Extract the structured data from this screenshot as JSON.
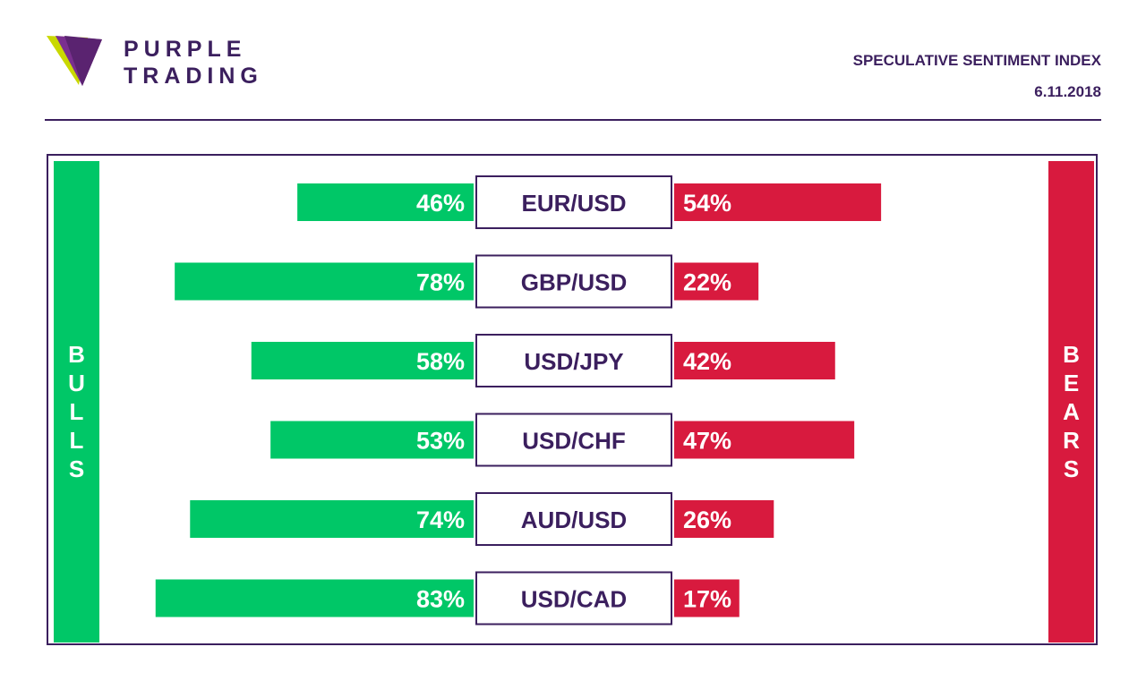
{
  "brand": {
    "line1": "PURPLE",
    "line2": "TRADING",
    "colors": {
      "purple": "#3b1f5e",
      "violet": "#7a2f8f",
      "lime": "#c9d800"
    }
  },
  "header": {
    "title": "SPECULATIVE SENTIMENT INDEX",
    "date": "6.11.2018"
  },
  "sides": {
    "bulls_label": "BULLS",
    "bears_label": "BEARS"
  },
  "colors": {
    "bulls": "#00c767",
    "bears": "#d81a3e",
    "label_text": "#3b1f5e",
    "frame": "#3b1f5e"
  },
  "chart_data": {
    "type": "bar",
    "categories": [
      "EUR/USD",
      "GBP/USD",
      "USD/JPY",
      "USD/CHF",
      "AUD/USD",
      "USD/CAD"
    ],
    "series": [
      {
        "name": "BULLS",
        "values": [
          46,
          78,
          58,
          53,
          74,
          83
        ],
        "labels": [
          "46%",
          "78%",
          "58%",
          "53%",
          "74%",
          "83%"
        ]
      },
      {
        "name": "BEARS",
        "values": [
          54,
          22,
          42,
          47,
          26,
          17
        ],
        "labels": [
          "54%",
          "22%",
          "42%",
          "47%",
          "26%",
          "17%"
        ]
      }
    ],
    "unit": "%",
    "grid": false
  }
}
